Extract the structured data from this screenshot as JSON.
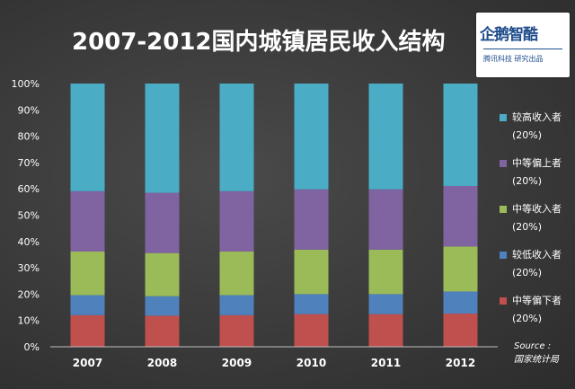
{
  "title": "2007-2012国内城镇居民收入结构",
  "logo": {
    "main": "企鹅智酷",
    "sub": "腾讯科技 研究出品"
  },
  "source": {
    "label": "Source :",
    "name": "国家统计局"
  },
  "legend": [
    {
      "label": "较高收入者",
      "sub": "(20%)",
      "color": "#4bacc6"
    },
    {
      "label": "中等偏上者",
      "sub": "(20%)",
      "color": "#8064a2"
    },
    {
      "label": "中等收入者",
      "sub": "(20%)",
      "color": "#9bbb59"
    },
    {
      "label": "较低收入者",
      "sub": "(20%)",
      "color": "#4f81bd"
    },
    {
      "label": "中等偏下者",
      "sub": "(20%)",
      "color": "#c0504d"
    }
  ],
  "chart_data": {
    "type": "bar",
    "stacked": true,
    "percent": true,
    "title": "2007-2012国内城镇居民收入结构",
    "categories": [
      "2007",
      "2008",
      "2009",
      "2010",
      "2011",
      "2012"
    ],
    "y_ticks": [
      "0%",
      "10%",
      "20%",
      "30%",
      "40%",
      "50%",
      "60%",
      "70%",
      "80%",
      "90%",
      "100%"
    ],
    "ylim": [
      0,
      100
    ],
    "grid": false,
    "legend_position": "right",
    "series": [
      {
        "name": "中等偏下者",
        "color": "#c0504d",
        "values": [
          12.0,
          11.8,
          12.0,
          12.4,
          12.4,
          12.6
        ]
      },
      {
        "name": "较低收入者",
        "color": "#4f81bd",
        "values": [
          7.6,
          7.4,
          7.6,
          7.6,
          7.6,
          8.4
        ]
      },
      {
        "name": "中等收入者",
        "color": "#9bbb59",
        "values": [
          16.6,
          16.4,
          16.6,
          16.9,
          16.9,
          17.1
        ]
      },
      {
        "name": "中等偏上者",
        "color": "#8064a2",
        "values": [
          22.9,
          22.9,
          22.9,
          22.9,
          22.9,
          23.0
        ]
      },
      {
        "name": "较高收入者",
        "color": "#4bacc6",
        "values": [
          40.9,
          41.5,
          40.9,
          40.2,
          40.2,
          38.9
        ]
      }
    ]
  }
}
